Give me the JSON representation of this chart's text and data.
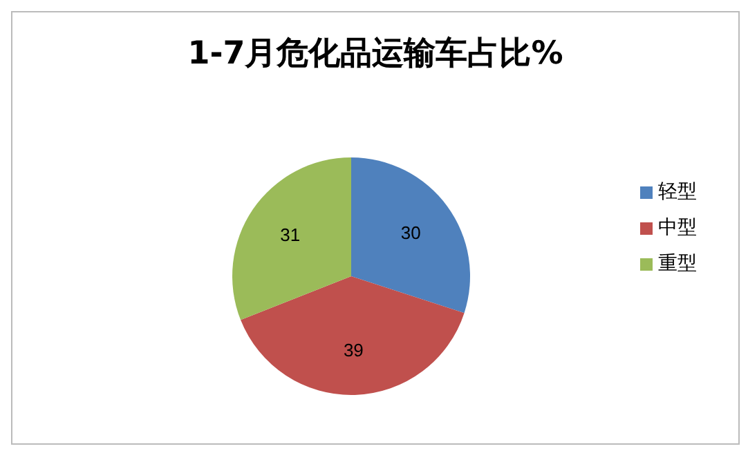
{
  "chart_data": {
    "type": "pie",
    "title": "1-7月危化品运输车占比%",
    "categories": [
      "轻型",
      "中型",
      "重型"
    ],
    "values": [
      30,
      39,
      31
    ],
    "colors": [
      "#4f81bd",
      "#c0504d",
      "#9bbb59"
    ],
    "data_labels": true,
    "legend": "right"
  }
}
